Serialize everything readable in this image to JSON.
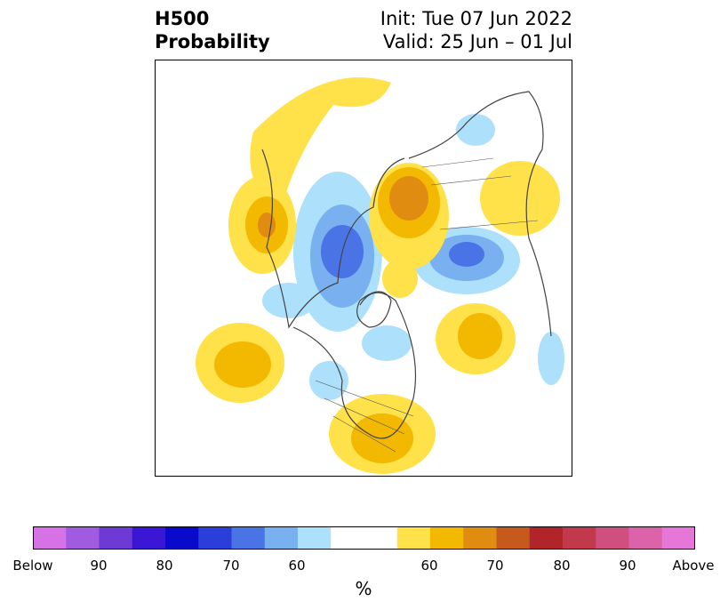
{
  "header": {
    "title_line1": "H500",
    "title_line2": "Probability",
    "init": "Init: Tue 07 Jun 2022",
    "valid": "Valid: 25 Jun – 01 Jul"
  },
  "colorbar": {
    "colors": [
      "#d672e6",
      "#a05be0",
      "#6d3ad6",
      "#3b16d4",
      "#0a0acd",
      "#2a3ed9",
      "#4a74e6",
      "#78b0f0",
      "#ace0fb",
      "#ffffff",
      "#ffffff",
      "#ffe14a",
      "#f3b800",
      "#e08c10",
      "#c55a1c",
      "#b0242a",
      "#c2394c",
      "#cf4f7e",
      "#dc62aa",
      "#e676d8"
    ],
    "tick_labels": [
      "Below",
      "90",
      "80",
      "70",
      "60",
      "60",
      "70",
      "80",
      "90",
      "Above"
    ],
    "unit": "%"
  },
  "map": {
    "projection": "north-polar-stereographic",
    "legend_colors": {
      "above_light": "#ffe14a",
      "above_mid": "#f3b800",
      "above_strong": "#e08c10",
      "below_light": "#ace0fb",
      "below_mid": "#78b0f0",
      "below_strong": "#4a74e6",
      "coast": "#444444"
    }
  }
}
